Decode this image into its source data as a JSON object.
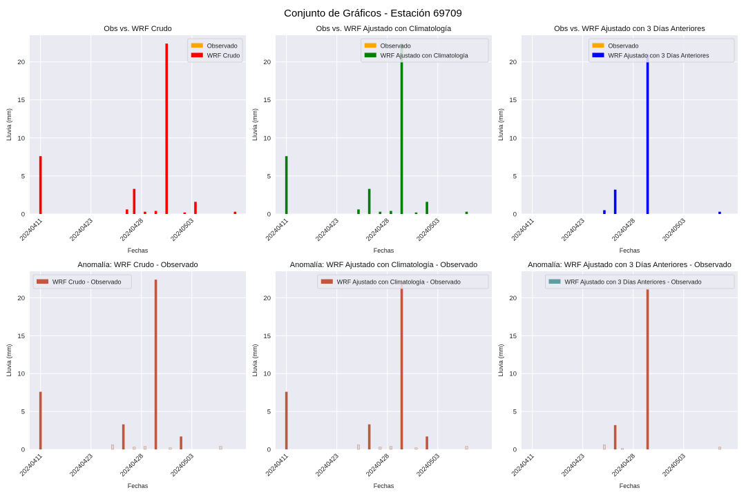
{
  "figure": {
    "title": "Conjunto de Gráficos - Estación 69709"
  },
  "colors": {
    "plot_bg": "#EAEAF2",
    "grid": "#FFFFFF",
    "observado": "#FFA500",
    "wrf_crudo": "#FF0000",
    "wrf_clim": "#008000",
    "wrf_3dias": "#0000FF",
    "anomaly_pos": "#C0583F",
    "anomaly_neg": "#D9D9D9",
    "anomaly_3dias_legend": "#5F9EA0"
  },
  "chart_data": [
    {
      "type": "bar",
      "title": "Obs vs. WRF Crudo",
      "xlabel": "Fechas",
      "ylabel": "Lluvia (mm)",
      "ylim": [
        0,
        23.5
      ],
      "yticks": [
        0,
        5,
        10,
        15,
        20
      ],
      "x_index_range": [
        -1.5,
        28.5
      ],
      "xtick_positions": [
        0,
        7,
        14,
        21
      ],
      "xtick_labels": [
        "20240411",
        "20240423",
        "20240428",
        "20240503"
      ],
      "legend": "top-right",
      "series": [
        {
          "name": "Observado",
          "color": "#FFA500",
          "points": []
        },
        {
          "name": "WRF Crudo",
          "color": "#FF0000",
          "points": [
            [
              0,
              7.6
            ],
            [
              12,
              0.6
            ],
            [
              13,
              3.3
            ],
            [
              14.5,
              0.3
            ],
            [
              16,
              0.4
            ],
            [
              17.5,
              22.4
            ],
            [
              20,
              0.2
            ],
            [
              21.5,
              1.6
            ],
            [
              27,
              0.3
            ]
          ]
        }
      ]
    },
    {
      "type": "bar",
      "title": "Obs vs. WRF Ajustado con Climatología",
      "xlabel": "Fechas",
      "ylabel": "Lluvia (mm)",
      "ylim": [
        0,
        23.5
      ],
      "yticks": [
        0,
        5,
        10,
        15,
        20
      ],
      "x_index_range": [
        -1.5,
        28.5
      ],
      "xtick_positions": [
        0,
        7,
        14,
        21
      ],
      "xtick_labels": [
        "20240411",
        "20240423",
        "20240428",
        "20240503"
      ],
      "legend": "top-right",
      "series": [
        {
          "name": "Observado",
          "color": "#FFA500",
          "points": []
        },
        {
          "name": "WRF Ajustado con Climatología",
          "color": "#008000",
          "points": [
            [
              0,
              7.6
            ],
            [
              10,
              0.6
            ],
            [
              11.5,
              3.3
            ],
            [
              13,
              0.3
            ],
            [
              14.5,
              0.4
            ],
            [
              16,
              22.4
            ],
            [
              18,
              0.2
            ],
            [
              19.5,
              1.6
            ],
            [
              25,
              0.3
            ]
          ]
        }
      ]
    },
    {
      "type": "bar",
      "title": "Obs vs. WRF Ajustado con 3 Días Anteriores",
      "xlabel": "Fechas",
      "ylabel": "Lluvia (mm)",
      "ylim": [
        0,
        23.5
      ],
      "yticks": [
        0,
        5,
        10,
        15,
        20
      ],
      "x_index_range": [
        -1.5,
        28.5
      ],
      "xtick_positions": [
        0,
        7,
        14,
        21
      ],
      "xtick_labels": [
        "20240411",
        "20240423",
        "20240428",
        "20240503"
      ],
      "legend": "top-right",
      "series": [
        {
          "name": "Observado",
          "color": "#FFA500",
          "points": []
        },
        {
          "name": "WRF Ajustado con 3 Días Anteriores",
          "color": "#0000FF",
          "points": [
            [
              10,
              0.5
            ],
            [
              11.5,
              3.2
            ],
            [
              16,
              21.0
            ],
            [
              26,
              0.3
            ]
          ]
        }
      ]
    },
    {
      "type": "bar",
      "title": "Anomalía: WRF Crudo - Observado",
      "xlabel": "Fechas",
      "ylabel": "Lluvia (mm)",
      "ylim": [
        0,
        23.5
      ],
      "yticks": [
        0,
        5,
        10,
        15,
        20
      ],
      "x_index_range": [
        -1.5,
        28.5
      ],
      "xtick_positions": [
        0,
        7,
        14,
        21
      ],
      "xtick_labels": [
        "20240411",
        "20240423",
        "20240428",
        "20240503"
      ],
      "legend": "top-left",
      "legend_color": "#C0583F",
      "series": [
        {
          "name": "WRF Crudo - Observado",
          "color": "#C0583F",
          "points": [
            [
              0,
              7.6
            ],
            [
              10,
              0.6
            ],
            [
              11.5,
              3.3
            ],
            [
              13,
              0.3
            ],
            [
              14.5,
              0.4
            ],
            [
              16,
              22.4
            ],
            [
              18,
              0.2
            ],
            [
              19.5,
              1.7
            ],
            [
              25,
              0.4
            ]
          ],
          "light": [
            10,
            13,
            14.5,
            18,
            25
          ]
        }
      ]
    },
    {
      "type": "bar",
      "title": "Anomalía: WRF Ajustado con Climatología - Observado",
      "xlabel": "Fechas",
      "ylabel": "Lluvia (mm)",
      "ylim": [
        0,
        23.5
      ],
      "yticks": [
        0,
        5,
        10,
        15,
        20
      ],
      "x_index_range": [
        -1.5,
        28.5
      ],
      "xtick_positions": [
        0,
        7,
        14,
        21
      ],
      "xtick_labels": [
        "20240411",
        "20240423",
        "20240428",
        "20240503"
      ],
      "legend": "top-right",
      "legend_color": "#C0583F",
      "series": [
        {
          "name": "WRF Ajustado con Climatología - Observado",
          "color": "#C0583F",
          "points": [
            [
              0,
              7.6
            ],
            [
              10,
              0.6
            ],
            [
              11.5,
              3.3
            ],
            [
              13,
              0.3
            ],
            [
              14.5,
              0.4
            ],
            [
              16,
              22.0
            ],
            [
              18,
              0.2
            ],
            [
              19.5,
              1.7
            ],
            [
              25,
              0.4
            ]
          ],
          "light": [
            10,
            13,
            14.5,
            18,
            25
          ]
        }
      ]
    },
    {
      "type": "bar",
      "title": "Anomalía: WRF Ajustado con 3 Días Anteriores - Observado",
      "xlabel": "Fechas",
      "ylabel": "Lluvia (mm)",
      "ylim": [
        0,
        23.5
      ],
      "yticks": [
        0,
        5,
        10,
        15,
        20
      ],
      "x_index_range": [
        -1.5,
        28.5
      ],
      "xtick_positions": [
        0,
        7,
        14,
        21
      ],
      "xtick_labels": [
        "20240411",
        "20240423",
        "20240428",
        "20240503"
      ],
      "legend": "top-right",
      "legend_color": "#5F9EA0",
      "series": [
        {
          "name": "WRF Ajustado con 3 Días Anteriores - Observado",
          "color": "#C0583F",
          "points": [
            [
              10,
              0.6
            ],
            [
              11.5,
              3.2
            ],
            [
              12.5,
              0.1
            ],
            [
              16,
              21.1
            ],
            [
              26,
              0.3
            ]
          ],
          "light": [
            10,
            12.5,
            26
          ]
        }
      ]
    }
  ]
}
